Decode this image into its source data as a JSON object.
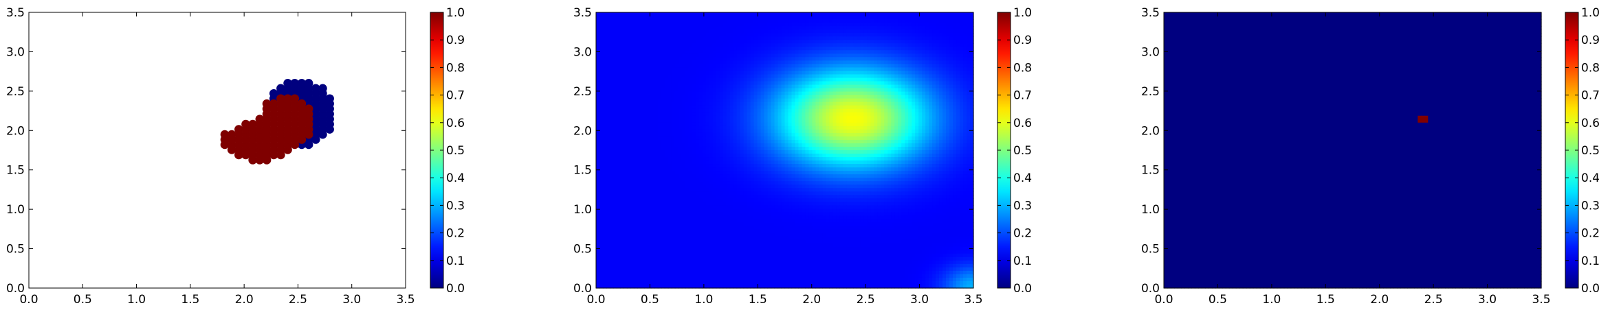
{
  "chart_data": [
    {
      "type": "scatter",
      "title": "",
      "xlabel": "",
      "ylabel": "",
      "xlim": [
        0,
        3.5
      ],
      "ylim": [
        0,
        3.5
      ],
      "xticks": [
        "0.0",
        "0.5",
        "1.0",
        "1.5",
        "2.0",
        "2.5",
        "3.0",
        "3.5"
      ],
      "yticks": [
        "0.0",
        "0.5",
        "1.0",
        "1.5",
        "2.0",
        "2.5",
        "3.0",
        "3.5"
      ],
      "grid": false,
      "colormap": "jet",
      "colorbar": {
        "range": [
          0,
          1
        ],
        "ticks": [
          "0.0",
          "0.1",
          "0.2",
          "0.3",
          "0.4",
          "0.5",
          "0.6",
          "0.7",
          "0.8",
          "0.9",
          "1.0"
        ]
      },
      "regions": [
        {
          "value": 0,
          "color": "#00007f",
          "shape": "ellipse",
          "center": [
            2.52,
            2.22
          ],
          "radii": [
            0.33,
            0.42
          ]
        },
        {
          "value": 1,
          "color": "#7f0000",
          "shape": "blob",
          "polygon": [
            [
              1.75,
              1.92
            ],
            [
              1.95,
              2.05
            ],
            [
              2.12,
              2.15
            ],
            [
              2.22,
              2.38
            ],
            [
              2.38,
              2.45
            ],
            [
              2.58,
              2.38
            ],
            [
              2.66,
              2.2
            ],
            [
              2.6,
              1.95
            ],
            [
              2.45,
              1.8
            ],
            [
              2.3,
              1.65
            ],
            [
              2.18,
              1.56
            ],
            [
              2.05,
              1.62
            ],
            [
              1.9,
              1.72
            ],
            [
              1.78,
              1.83
            ]
          ]
        }
      ],
      "marker_spacing": 0.065
    },
    {
      "type": "heatmap",
      "title": "",
      "xlabel": "",
      "ylabel": "",
      "xlim": [
        0,
        3.5
      ],
      "ylim": [
        0,
        3.5
      ],
      "xticks": [
        "0.0",
        "0.5",
        "1.0",
        "1.5",
        "2.0",
        "2.5",
        "3.0",
        "3.5"
      ],
      "yticks": [
        "0.0",
        "0.5",
        "1.0",
        "1.5",
        "2.0",
        "2.5",
        "3.0",
        "3.5"
      ],
      "grid": false,
      "colormap": "jet",
      "colorbar": {
        "range": [
          0,
          1
        ],
        "ticks": [
          "0.0",
          "0.1",
          "0.2",
          "0.3",
          "0.4",
          "0.5",
          "0.6",
          "0.7",
          "0.8",
          "0.9",
          "1.0"
        ]
      },
      "field": {
        "background": 0.12,
        "peak_value": 0.62,
        "peak_center": [
          2.38,
          2.15
        ],
        "peak_spread": [
          0.7,
          0.62
        ],
        "corner_highlights": [
          {
            "position": [
              3.5,
              0.0
            ],
            "value": 0.3,
            "spread": 0.28
          }
        ]
      }
    },
    {
      "type": "heatmap",
      "title": "",
      "xlabel": "",
      "ylabel": "",
      "xlim": [
        0,
        3.5
      ],
      "ylim": [
        0,
        3.5
      ],
      "xticks": [
        "0.0",
        "0.5",
        "1.0",
        "1.5",
        "2.0",
        "2.5",
        "3.0",
        "3.5"
      ],
      "yticks": [
        "0.0",
        "0.5",
        "1.0",
        "1.5",
        "2.0",
        "2.5",
        "3.0",
        "3.5"
      ],
      "grid": false,
      "colormap": "jet",
      "colorbar": {
        "range": [
          0,
          1
        ],
        "ticks": [
          "0.0",
          "0.1",
          "0.2",
          "0.3",
          "0.4",
          "0.5",
          "0.6",
          "0.7",
          "0.8",
          "0.9",
          "1.0"
        ]
      },
      "field": {
        "background": 0.0,
        "hotspot_value": 1.0,
        "hotspot_center": [
          2.4,
          2.15
        ],
        "hotspot_radii": [
          0.06,
          0.045
        ]
      }
    }
  ]
}
